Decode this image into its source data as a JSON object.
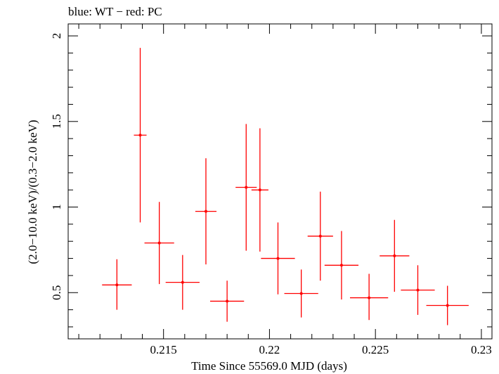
{
  "chart_data": {
    "type": "scatter",
    "title": "blue: WT − red: PC",
    "xlabel": "Time Since 55569.0 MJD (days)",
    "ylabel": "(2.0−10.0 keV)/(0.3−2.0 keV)",
    "xlim": [
      0.2105,
      0.2305
    ],
    "ylim": [
      0.23,
      2.07
    ],
    "x_ticks": [
      0.215,
      0.22,
      0.225,
      0.23
    ],
    "x_tick_labels": [
      "0.215",
      "0.22",
      "0.225",
      "0.23"
    ],
    "y_ticks": [
      0.5,
      1,
      1.5,
      2
    ],
    "y_tick_labels": [
      "0.5",
      "1",
      "1.5",
      "2"
    ],
    "grid": false,
    "series": [
      {
        "color": "#ff0000",
        "points": [
          {
            "x": 0.2128,
            "xerr": 0.0007,
            "y": 0.545,
            "yerr_low": 0.145,
            "yerr_high": 0.15
          },
          {
            "x": 0.2139,
            "xerr": 0.0003,
            "y": 1.42,
            "yerr_low": 0.51,
            "yerr_high": 0.51
          },
          {
            "x": 0.2148,
            "xerr": 0.0007,
            "y": 0.79,
            "yerr_low": 0.24,
            "yerr_high": 0.24
          },
          {
            "x": 0.2159,
            "xerr": 0.0008,
            "y": 0.56,
            "yerr_low": 0.16,
            "yerr_high": 0.16
          },
          {
            "x": 0.217,
            "xerr": 0.0005,
            "y": 0.975,
            "yerr_low": 0.31,
            "yerr_high": 0.31
          },
          {
            "x": 0.218,
            "xerr": 0.0008,
            "y": 0.45,
            "yerr_low": 0.12,
            "yerr_high": 0.12
          },
          {
            "x": 0.2189,
            "xerr": 0.0005,
            "y": 1.115,
            "yerr_low": 0.37,
            "yerr_high": 0.37
          },
          {
            "x": 0.21955,
            "xerr": 0.0004,
            "y": 1.1,
            "yerr_low": 0.36,
            "yerr_high": 0.36
          },
          {
            "x": 0.2204,
            "xerr": 0.0008,
            "y": 0.7,
            "yerr_low": 0.21,
            "yerr_high": 0.21
          },
          {
            "x": 0.2215,
            "xerr": 0.0008,
            "y": 0.495,
            "yerr_low": 0.14,
            "yerr_high": 0.14
          },
          {
            "x": 0.2224,
            "xerr": 0.0006,
            "y": 0.83,
            "yerr_low": 0.26,
            "yerr_high": 0.26
          },
          {
            "x": 0.2234,
            "xerr": 0.0008,
            "y": 0.66,
            "yerr_low": 0.2,
            "yerr_high": 0.2
          },
          {
            "x": 0.2247,
            "xerr": 0.0009,
            "y": 0.47,
            "yerr_low": 0.13,
            "yerr_high": 0.14
          },
          {
            "x": 0.2259,
            "xerr": 0.0007,
            "y": 0.715,
            "yerr_low": 0.21,
            "yerr_high": 0.21
          },
          {
            "x": 0.227,
            "xerr": 0.0008,
            "y": 0.515,
            "yerr_low": 0.145,
            "yerr_high": 0.145
          },
          {
            "x": 0.2284,
            "xerr": 0.001,
            "y": 0.425,
            "yerr_low": 0.115,
            "yerr_high": 0.115
          }
        ]
      }
    ]
  }
}
